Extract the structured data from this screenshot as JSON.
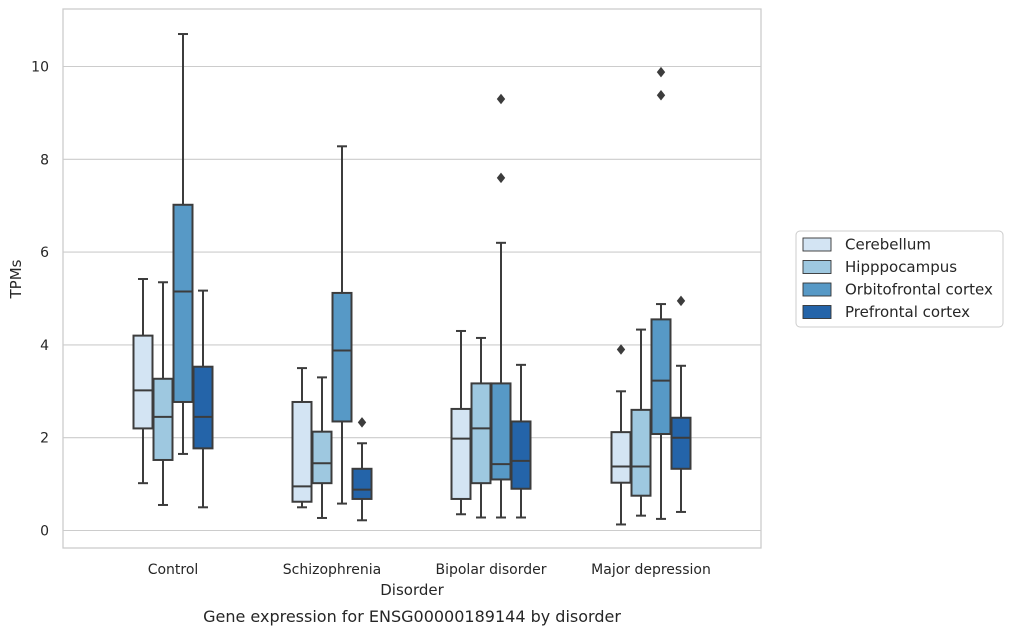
{
  "chart_data": {
    "type": "box",
    "title": "",
    "xlabel": "Disorder",
    "ylabel": "TPMs",
    "caption": "Gene expression for ENSG00000189144 by disorder",
    "ylim": [
      -0.4,
      11.2
    ],
    "yticks": [
      0,
      2,
      4,
      6,
      8,
      10
    ],
    "ytick_labels": [
      "0",
      "2",
      "4",
      "6",
      "8",
      "10"
    ],
    "grid": "horizontal",
    "legend_position": "right",
    "categories": [
      "Control",
      "Schizophrenia",
      "Bipolar disorder",
      "Major depression"
    ],
    "series": [
      {
        "name": "Cerebellum",
        "color": "#d3e4f3",
        "boxes": [
          {
            "whislo": 1.02,
            "q1": 2.2,
            "med": 3.02,
            "q3": 4.2,
            "whishi": 5.42,
            "fliers": []
          },
          {
            "whislo": 0.5,
            "q1": 0.62,
            "med": 0.95,
            "q3": 2.77,
            "whishi": 3.5,
            "fliers": []
          },
          {
            "whislo": 0.35,
            "q1": 0.68,
            "med": 1.98,
            "q3": 2.62,
            "whishi": 4.3,
            "fliers": []
          },
          {
            "whislo": 0.13,
            "q1": 1.03,
            "med": 1.38,
            "q3": 2.12,
            "whishi": 3.0,
            "fliers": [
              3.9
            ]
          }
        ]
      },
      {
        "name": "Hipppocampus",
        "color": "#9ec8e0",
        "boxes": [
          {
            "whislo": 0.55,
            "q1": 1.52,
            "med": 2.45,
            "q3": 3.27,
            "whishi": 5.35,
            "fliers": []
          },
          {
            "whislo": 0.27,
            "q1": 1.02,
            "med": 1.45,
            "q3": 2.13,
            "whishi": 3.3,
            "fliers": []
          },
          {
            "whislo": 0.28,
            "q1": 1.02,
            "med": 2.2,
            "q3": 3.17,
            "whishi": 4.15,
            "fliers": []
          },
          {
            "whislo": 0.32,
            "q1": 0.75,
            "med": 1.38,
            "q3": 2.6,
            "whishi": 4.33,
            "fliers": []
          }
        ]
      },
      {
        "name": "Orbitofrontal cortex",
        "color": "#5799c6",
        "boxes": [
          {
            "whislo": 1.65,
            "q1": 2.77,
            "med": 5.15,
            "q3": 7.02,
            "whishi": 10.7,
            "fliers": []
          },
          {
            "whislo": 0.58,
            "q1": 2.35,
            "med": 3.88,
            "q3": 5.12,
            "whishi": 8.28,
            "fliers": []
          },
          {
            "whislo": 0.28,
            "q1": 1.1,
            "med": 1.43,
            "q3": 3.17,
            "whishi": 6.2,
            "fliers": [
              7.6,
              9.3
            ]
          },
          {
            "whislo": 0.25,
            "q1": 2.08,
            "med": 3.23,
            "q3": 4.55,
            "whishi": 4.88,
            "fliers": [
              9.38,
              9.88
            ]
          }
        ]
      },
      {
        "name": "Prefrontal cortex",
        "color": "#2464a9",
        "boxes": [
          {
            "whislo": 0.5,
            "q1": 1.77,
            "med": 2.45,
            "q3": 3.53,
            "whishi": 5.17,
            "fliers": []
          },
          {
            "whislo": 0.22,
            "q1": 0.68,
            "med": 0.88,
            "q3": 1.33,
            "whishi": 1.88,
            "fliers": [
              2.33
            ]
          },
          {
            "whislo": 0.28,
            "q1": 0.9,
            "med": 1.5,
            "q3": 2.35,
            "whishi": 3.57,
            "fliers": []
          },
          {
            "whislo": 0.4,
            "q1": 1.33,
            "med": 2.0,
            "q3": 2.43,
            "whishi": 3.55,
            "fliers": [
              4.95
            ]
          }
        ]
      }
    ]
  },
  "colors": {
    "grid": "#cccccc",
    "frame": "#cccccc",
    "line": "#3c3c3c",
    "text": "#262626"
  }
}
